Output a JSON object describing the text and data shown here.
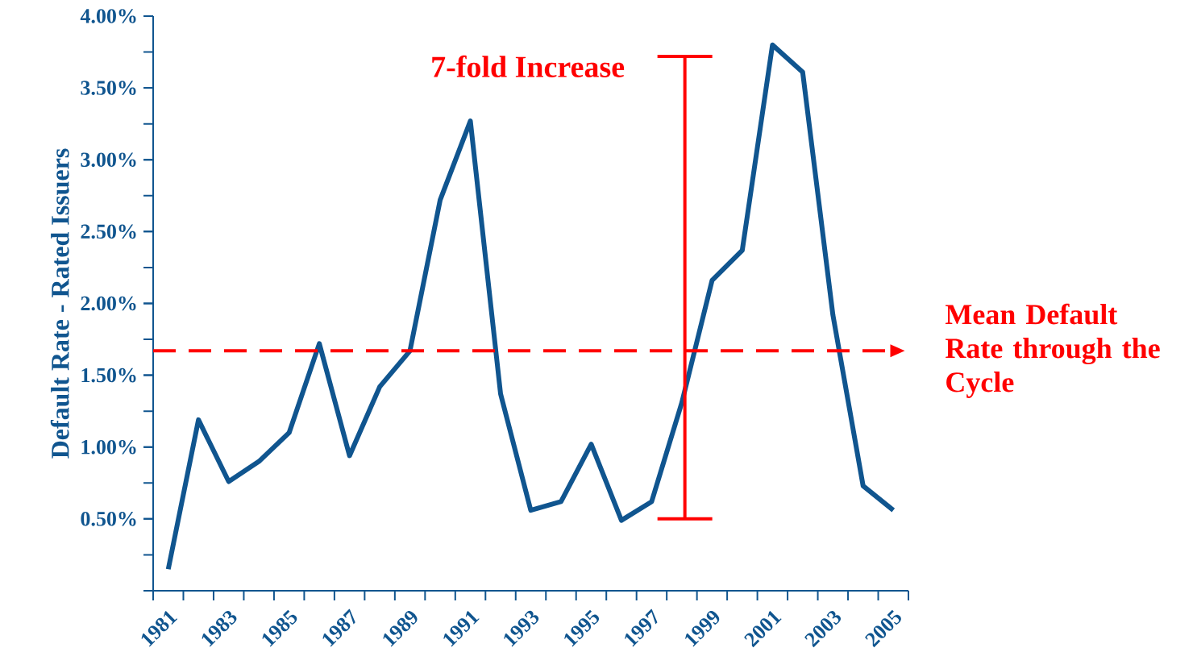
{
  "chart_data": {
    "type": "line",
    "ylabel": "Default Rate - Rated Issuers",
    "categories": [
      "1981",
      null,
      "1983",
      null,
      "1985",
      null,
      "1987",
      null,
      "1989",
      null,
      "1991",
      null,
      "1993",
      null,
      "1995",
      null,
      "1997",
      null,
      "1999",
      null,
      "2001",
      null,
      "2003",
      null,
      "2005"
    ],
    "series": [
      {
        "color": "#10558f",
        "values": [
          0.15,
          1.19,
          0.76,
          0.9,
          1.1,
          1.72,
          0.94,
          1.42,
          1.67,
          2.72,
          3.27,
          1.37,
          0.56,
          0.62,
          1.02,
          0.49,
          0.62,
          1.31,
          2.16,
          2.37,
          3.8,
          3.61,
          1.92,
          0.73,
          0.56
        ]
      }
    ],
    "ylim": [
      0,
      4
    ],
    "yticks": [
      {
        "value": 0.5,
        "label": "0.50%"
      },
      {
        "value": 1.0,
        "label": "1.00%"
      },
      {
        "value": 1.5,
        "label": "1.50%"
      },
      {
        "value": 2.0,
        "label": "2.00%"
      },
      {
        "value": 2.5,
        "label": "2.50%"
      },
      {
        "value": 3.0,
        "label": "3.00%"
      },
      {
        "value": 3.5,
        "label": "3.50%"
      },
      {
        "value": 4.0,
        "label": "4.00%"
      }
    ],
    "marker": "none",
    "line_style": "solid",
    "ref_lines": [
      {
        "axis": "y",
        "value": 1.67,
        "label": "Mean Default Rate **through** the Cycle",
        "color": "#ff0000",
        "line_style": "dashed"
      }
    ],
    "annotations": [
      "7-fold Increase"
    ]
  }
}
